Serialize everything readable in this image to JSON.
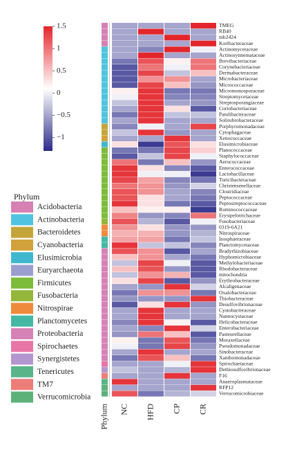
{
  "chart_data": {
    "type": "heatmap",
    "columns": [
      "NC",
      "HFD",
      "CP",
      "CR"
    ],
    "group_label": "Phylum",
    "legend_title": "Phylum",
    "groups": [
      {
        "name": "Acidobacteria",
        "color": "#d680b4"
      },
      {
        "name": "Actinobacteria",
        "color": "#4fc3e0"
      },
      {
        "name": "Bacteroidetes",
        "color": "#c4a53a"
      },
      {
        "name": "Cyanobacteria",
        "color": "#d1a23c"
      },
      {
        "name": "Elusimicrobia",
        "color": "#3fb7cf"
      },
      {
        "name": "Euryarchaeota",
        "color": "#9b9fd0"
      },
      {
        "name": "Firmicutes",
        "color": "#7cbc3a"
      },
      {
        "name": "Fusobacteria",
        "color": "#93b63b"
      },
      {
        "name": "Nitrospirae",
        "color": "#ef8a3c"
      },
      {
        "name": "Planctomycetes",
        "color": "#45b8a4"
      },
      {
        "name": "Proteobacteria",
        "color": "#d682b6"
      },
      {
        "name": "Spirochaetes",
        "color": "#e776a6"
      },
      {
        "name": "Synergistetes",
        "color": "#b496cf"
      },
      {
        "name": "Tenericutes",
        "color": "#59b48a"
      },
      {
        "name": "TM7",
        "color": "#ec7d78"
      },
      {
        "name": "Verrucomicrobia",
        "color": "#5db27a"
      }
    ],
    "rows": [
      "TMEG",
      "RB40",
      "mb2424",
      "Koribacteraceae",
      "Actinomycetaceae",
      "Actinosynnemataceae",
      "Brevibacteriaceae",
      "Corynebacteriaceae",
      "Dermabacteraceae",
      "Microbacteriaceae",
      "Micrococcaceae",
      "Micromonosporaceae",
      "Streptomycetaceae",
      "Streptosporangiaceae",
      "Coriobacteriaceae",
      "Patulibacteraceae",
      "Solirubrobacteraceae",
      "Porphyromonadaceae",
      "Cytophagaceae",
      "Xenococcaceae",
      "Elusimicrobiaceae",
      "Planococcaceae",
      "Staphylococcaceae",
      "Aerococcaceae",
      "Enterococcaceae",
      "Lactobacillaceae",
      "Turicibacteraceae",
      "Christensenellaceae",
      "Clostridiaceae",
      "Peptococcaceae",
      "Peptostreptococcaceae",
      "Ruminococcaceae",
      "Erysipelotrichaceae",
      "Fusobacteriaceae",
      "0319-6A21",
      "Nitrospiraceae",
      "Isosphaeraceae",
      "Planctomycetaceae",
      "Bradyrhizobiaceae",
      "Hyphomicrobiaceae",
      "Methylobacteriaceae",
      "Rhodobacteraceae",
      "mitochondria",
      "Erythrobacteraceae",
      "Alcaligenaceae",
      "Oxalobacteraceae",
      "Thiobacteraceae",
      "Desulfovibrionaceae",
      "Cystobacteraceae",
      "Nannocystaceae",
      "Helicobacteraceae",
      "Enterobacteriaceae",
      "Pasteurellaceae",
      "Moraxellaceae",
      "Pseudomonadaceae",
      "Sinobacteraceae",
      "Xanthomonadaceae",
      "Spirochaetaceae",
      "Dethiosulfovibrionaceae",
      "F16",
      "Anaeroplasmataceae",
      "RFP12",
      "Verrucomicrobiaceae"
    ],
    "row_groups": [
      0,
      0,
      0,
      0,
      1,
      1,
      1,
      1,
      1,
      1,
      1,
      1,
      1,
      1,
      1,
      1,
      1,
      2,
      2,
      3,
      4,
      6,
      6,
      6,
      6,
      6,
      6,
      6,
      6,
      6,
      6,
      6,
      6,
      7,
      8,
      8,
      9,
      9,
      10,
      10,
      10,
      10,
      10,
      10,
      10,
      10,
      10,
      10,
      10,
      10,
      10,
      10,
      10,
      10,
      10,
      10,
      10,
      11,
      12,
      14,
      13,
      15,
      15
    ],
    "values": [
      [
        -0.5,
        -0.5,
        -0.5,
        1.5
      ],
      [
        -0.5,
        1.5,
        -0.5,
        -0.5
      ],
      [
        -0.5,
        -0.5,
        1.5,
        -0.5
      ],
      [
        -0.5,
        -0.5,
        -0.5,
        1.5
      ],
      [
        -0.5,
        -0.7,
        1.5,
        0
      ],
      [
        -0.5,
        1.5,
        -0.5,
        -0.5
      ],
      [
        -0.8,
        1.2,
        0.2,
        1
      ],
      [
        -1,
        1,
        0,
        1
      ],
      [
        -1,
        1.3,
        -0.3,
        0.5
      ],
      [
        -1,
        0.8,
        0.8,
        -0.5
      ],
      [
        -1,
        1.3,
        0.5,
        -0.6
      ],
      [
        0.2,
        1.4,
        -0.8,
        -0.8
      ],
      [
        0,
        1.4,
        -0.7,
        -0.7
      ],
      [
        -0.3,
        1.4,
        -0.5,
        -0.6
      ],
      [
        -0.5,
        1.4,
        0.3,
        -1
      ],
      [
        -0.8,
        1.4,
        -0.3,
        -0.3
      ],
      [
        -0.5,
        1.4,
        -0.5,
        -0.5
      ],
      [
        -0.7,
        0,
        -0.5,
        1.3
      ],
      [
        -0.3,
        1.4,
        -0.6,
        -0.5
      ],
      [
        -0.5,
        -0.5,
        1.4,
        -0.5
      ],
      [
        0.3,
        -1.2,
        1.2,
        0.3
      ],
      [
        -0.8,
        -0.8,
        1.3,
        0.4
      ],
      [
        -1,
        -0.3,
        1.3,
        0
      ],
      [
        1,
        -0.8,
        0.5,
        -0.6
      ],
      [
        1.4,
        0.3,
        -0.7,
        -1
      ],
      [
        1.4,
        0,
        0,
        -1.2
      ],
      [
        1.3,
        0.7,
        -0.7,
        -0.8
      ],
      [
        1,
        0.8,
        -0.6,
        -0.2
      ],
      [
        1.2,
        0.8,
        -0.5,
        -0.7
      ],
      [
        1.2,
        0.3,
        -0.5,
        -0.8
      ],
      [
        1.4,
        0.3,
        -0.8,
        -1
      ],
      [
        0.5,
        0.2,
        0.2,
        -1.2
      ],
      [
        0.9,
        -0.6,
        -0.7,
        1
      ],
      [
        1.2,
        -0.4,
        -1,
        0
      ],
      [
        0.8,
        0.3,
        -0.6,
        -0.6
      ],
      [
        0.6,
        0.6,
        -0.6,
        -0.4
      ],
      [
        0.7,
        0.7,
        -0.8,
        -0.3
      ],
      [
        1.4,
        -0.3,
        -0.3,
        -0.7
      ],
      [
        1.2,
        0.8,
        -1,
        -0.5
      ],
      [
        0.5,
        0.8,
        -0.5,
        -0.8
      ],
      [
        -0.3,
        1.3,
        0,
        -1
      ],
      [
        0.5,
        1.2,
        -0.6,
        -1
      ],
      [
        -0.3,
        0.8,
        0.6,
        -1
      ],
      [
        0.3,
        1.3,
        -1,
        -0.6
      ],
      [
        -0.5,
        -0.6,
        1.4,
        -0.2
      ],
      [
        -0.8,
        0.8,
        0.8,
        -0.8
      ],
      [
        -0.6,
        -0.6,
        -0.6,
        1.4
      ],
      [
        -1,
        0.3,
        1.4,
        -0.6
      ],
      [
        -0.5,
        1.4,
        -0.5,
        -0.5
      ],
      [
        -0.5,
        1.4,
        -0.5,
        -0.5
      ],
      [
        -0.7,
        1.4,
        0.2,
        -1
      ],
      [
        -0.5,
        -0.7,
        1.4,
        -0.2
      ],
      [
        -0.6,
        1,
        0.5,
        -1
      ],
      [
        0.2,
        -0.8,
        1.2,
        -0.8
      ],
      [
        0,
        -0.8,
        1.3,
        -0.6
      ],
      [
        -0.5,
        1.4,
        -0.5,
        -0.5
      ],
      [
        -0.8,
        1.2,
        0.5,
        -0.8
      ],
      [
        -0.5,
        -0.5,
        0,
        1.4
      ],
      [
        -0.3,
        -0.5,
        -0.4,
        1.4
      ],
      [
        -0.5,
        -0.5,
        1.4,
        -0.5
      ],
      [
        1.4,
        -0.5,
        -0.5,
        -0.5
      ],
      [
        -0.5,
        -0.5,
        -0.5,
        1.4
      ],
      [
        1.2,
        -0.8,
        -0.4,
        -0.2
      ]
    ],
    "colorlim": [
      -1.3,
      1.5
    ],
    "colors": [
      "#2c2c8a",
      "#ffffff",
      "#e3262b"
    ],
    "colorticks": [
      1.5,
      1,
      0.5,
      0,
      {
        "value": -0.5,
        "label": "−0.5"
      },
      {
        "value": -1,
        "label": "−1"
      }
    ]
  }
}
